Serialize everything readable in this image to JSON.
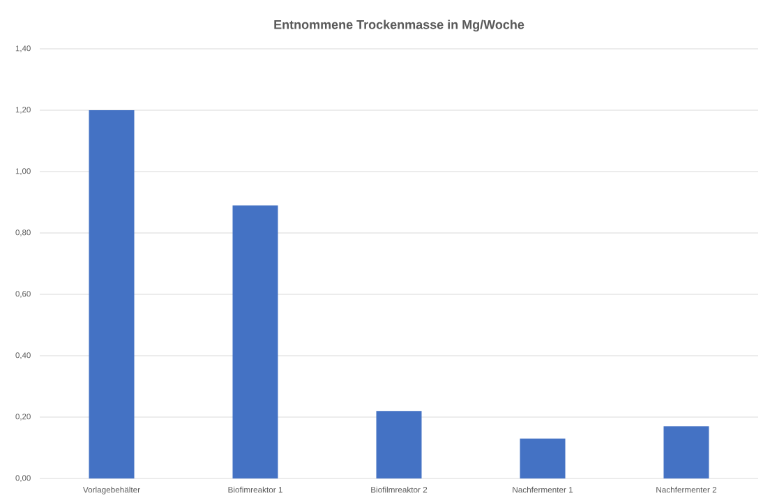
{
  "chart_data": {
    "type": "bar",
    "title": "Entnommene Trockenmasse in Mg/Woche",
    "categories": [
      "Vorlagebehälter",
      "Biofimreaktor 1",
      "Biofilmreaktor 2",
      "Nachfermenter 1",
      "Nachfermenter 2"
    ],
    "values": [
      1.2,
      0.89,
      0.22,
      0.13,
      0.17
    ],
    "color": "#4472c4",
    "ylim": [
      0,
      1.4
    ],
    "yticks": [
      {
        "value": 0,
        "label": "0,00"
      },
      {
        "value": 0.2,
        "label": "0,20"
      },
      {
        "value": 0.4,
        "label": "0,40"
      },
      {
        "value": 0.6,
        "label": "0,60"
      },
      {
        "value": 0.8,
        "label": "0,80"
      },
      {
        "value": 1.0,
        "label": "1,00"
      },
      {
        "value": 1.2,
        "label": "1,20"
      },
      {
        "value": 1.4,
        "label": "1,40"
      }
    ],
    "grid": true
  }
}
